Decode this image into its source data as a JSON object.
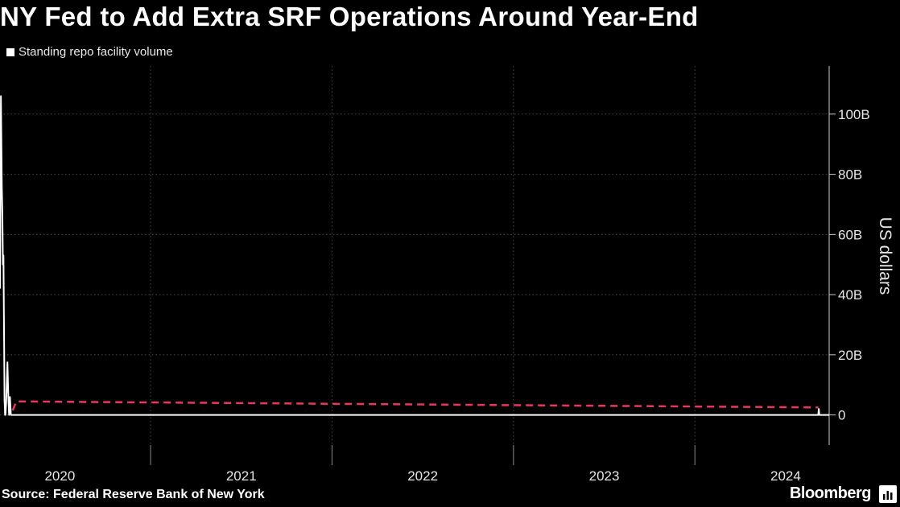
{
  "header": {
    "title": "NY Fed to Add Extra SRF Operations Around Year-End",
    "legend_label": "Standing repo facility volume"
  },
  "footer": {
    "source": "Source: Federal Reserve Bank of New York",
    "brand": "Bloomberg"
  },
  "colors": {
    "background": "#000000",
    "series": "#ffffff",
    "dashed_line": "#e8375a",
    "grid": "#4a4a4a"
  },
  "icons": {
    "brand_icon": "bloomberg-chart-icon"
  },
  "chart_data": {
    "type": "line",
    "ylabel": "US dollars",
    "y_unit": "billions",
    "ylim": [
      -10,
      116
    ],
    "y_ticks": [
      0,
      20,
      40,
      60,
      80,
      100
    ],
    "y_tick_labels": [
      "0",
      "20B",
      "40B",
      "60B",
      "80B",
      "100B"
    ],
    "xlim": [
      2020.17,
      2024.74
    ],
    "x_tick_labels": [
      "2020",
      "2021",
      "2022",
      "2023",
      "2024"
    ],
    "x_tick_label_positions": [
      2020.5,
      2021.5,
      2022.5,
      2023.5,
      2024.5
    ],
    "x_boundaries": [
      2021.0,
      2022.0,
      2023.0,
      2024.0
    ],
    "grid": true,
    "legend_position": "top-left",
    "series": [
      {
        "name": "Standing repo facility volume",
        "x": [
          2020.17,
          2020.175,
          2020.18,
          2020.183,
          2020.186,
          2020.189,
          2020.192,
          2020.195,
          2020.198,
          2020.2,
          2020.204,
          2020.208,
          2020.211,
          2020.215,
          2020.22,
          2020.225,
          2020.23,
          2020.233,
          2020.236,
          2020.24,
          2020.245,
          2020.25,
          2024.0,
          2024.5,
          2024.68,
          2024.683,
          2024.686,
          2024.74
        ],
        "values": [
          42,
          106,
          76,
          67,
          50,
          53,
          30,
          5,
          0,
          0,
          4,
          12,
          17.5,
          8,
          0,
          6,
          0,
          0,
          0,
          0,
          0,
          0,
          0,
          0,
          0,
          2,
          0,
          0
        ]
      },
      {
        "name": "",
        "style": "dashed",
        "x": [
          2020.24,
          2020.26,
          2024.68
        ],
        "values": [
          1.5,
          4.5,
          2.5
        ]
      }
    ]
  }
}
